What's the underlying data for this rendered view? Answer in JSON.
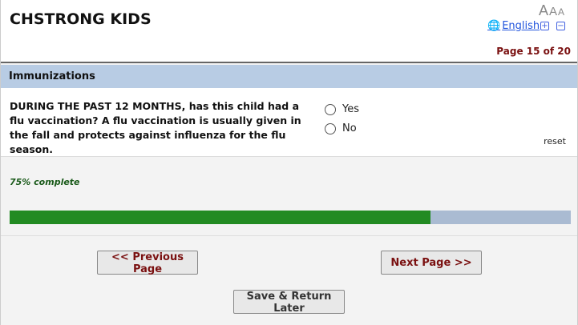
{
  "header": {
    "title": "CHSTRONG KIDS",
    "font_size_labels": [
      "A",
      "A",
      "A"
    ],
    "language": "English",
    "increase_label": "+",
    "decrease_label": "−",
    "page_indicator": "Page 15 of 20"
  },
  "section": {
    "title": "Immunizations"
  },
  "question": {
    "text": "DURING THE PAST 12 MONTHS, has this child had a flu vaccination? A flu vaccination is usually given in the fall and protects against influenza for the flu season.",
    "options": [
      "Yes",
      "No"
    ],
    "reset_label": "reset"
  },
  "progress": {
    "label": "75% complete",
    "percent": 75,
    "fill_color": "#228b22",
    "track_color": "#aabbd2"
  },
  "nav": {
    "previous": "<< Previous Page",
    "next": "Next Page >>",
    "save": "Save & Return Later"
  }
}
